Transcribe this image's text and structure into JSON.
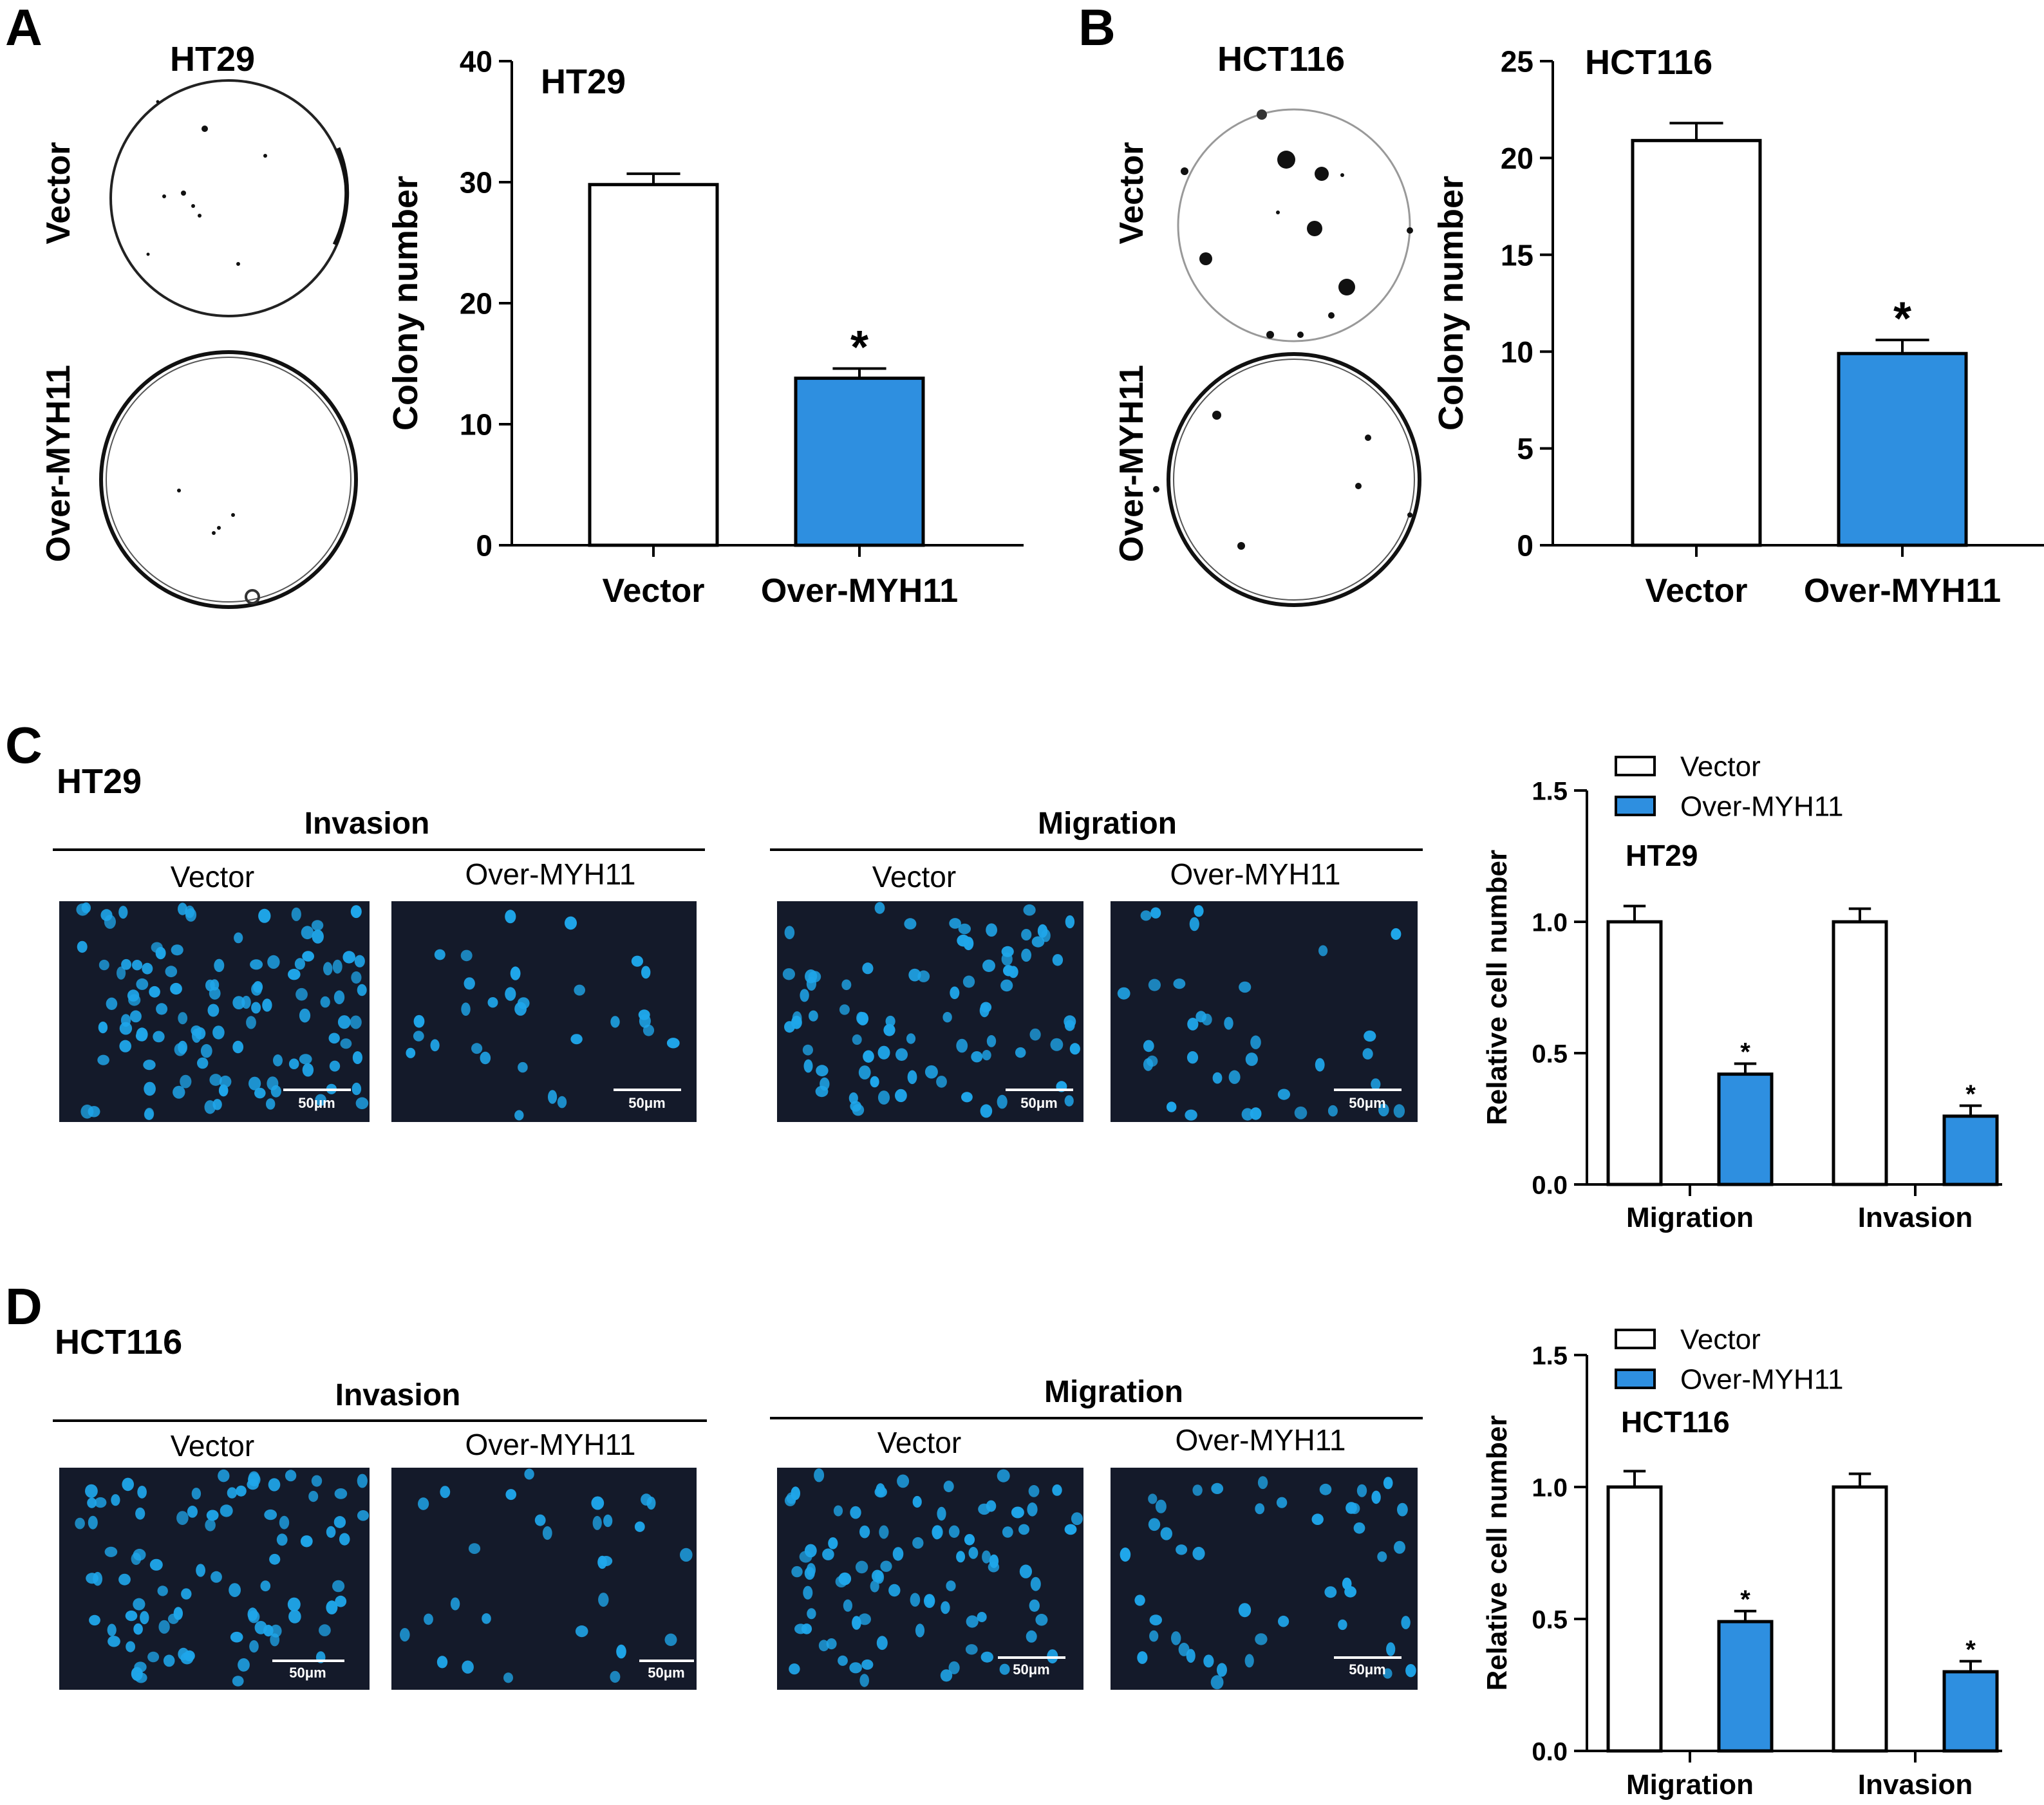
{
  "panels": {
    "A": {
      "letter": "A",
      "dish_title": "HT29",
      "row_labels": [
        "Vector",
        "Over-MYH11"
      ]
    },
    "B": {
      "letter": "B",
      "dish_title": "HCT116",
      "row_labels": [
        "Vector",
        "Over-MYH11"
      ]
    },
    "C": {
      "letter": "C",
      "cell_line": "HT29",
      "invasion_header": "Invasion",
      "migration_header": "Migration",
      "image_labels": [
        "Vector",
        "Over-MYH11",
        "Vector",
        "Over-MYH11"
      ],
      "scale_bar": "50μm"
    },
    "D": {
      "letter": "D",
      "cell_line": "HCT116",
      "invasion_header": "Invasion",
      "migration_header": "Migration",
      "image_labels": [
        "Vector",
        "Over-MYH11",
        "Vector",
        "Over-MYH11"
      ],
      "scale_bar": "50μm"
    }
  },
  "colors": {
    "vector_fill": "#ffffff",
    "over_fill": "#2e8fe0",
    "micrograph_bg": "#141a2a",
    "nucleus": "#1fa6ea",
    "axis": "#000000"
  },
  "chart_data": [
    {
      "id": "A",
      "type": "bar",
      "title": "HT29",
      "categories": [
        "Vector",
        "Over-MYH11"
      ],
      "values": [
        29.8,
        13.8
      ],
      "errors": [
        0.9,
        0.8
      ],
      "significance": [
        "",
        "*"
      ],
      "ylabel": "Colony number",
      "ylim": [
        0,
        40
      ],
      "yticks": [
        0,
        10,
        20,
        30,
        40
      ],
      "ytick_labels": [
        "0",
        "10",
        "20",
        "30",
        "40"
      ]
    },
    {
      "id": "B",
      "type": "bar",
      "title": "HCT116",
      "categories": [
        "Vector",
        "Over-MYH11"
      ],
      "values": [
        20.9,
        9.9
      ],
      "errors": [
        0.9,
        0.7
      ],
      "significance": [
        "",
        "*"
      ],
      "ylabel": "Colony number",
      "ylim": [
        0,
        25
      ],
      "yticks": [
        0,
        5,
        10,
        15,
        20,
        25
      ],
      "ytick_labels": [
        "0",
        "5",
        "10",
        "15",
        "20",
        "25"
      ]
    },
    {
      "id": "C",
      "type": "bar",
      "title": "HT29",
      "categories": [
        "Migration",
        "Invasion"
      ],
      "series": [
        {
          "name": "Vector",
          "values": [
            1.0,
            1.0
          ],
          "errors": [
            0.06,
            0.05
          ],
          "significance": [
            "",
            ""
          ]
        },
        {
          "name": "Over-MYH11",
          "values": [
            0.42,
            0.26
          ],
          "errors": [
            0.04,
            0.04
          ],
          "significance": [
            "*",
            "*"
          ]
        }
      ],
      "ylabel": "Relative cell number",
      "ylim": [
        0,
        1.5
      ],
      "yticks": [
        0,
        0.5,
        1.0,
        1.5
      ],
      "ytick_labels": [
        "0.0",
        "0.5",
        "1.0",
        "1.5"
      ]
    },
    {
      "id": "D",
      "type": "bar",
      "title": "HCT116",
      "categories": [
        "Migration",
        "Invasion"
      ],
      "series": [
        {
          "name": "Vector",
          "values": [
            1.0,
            1.0
          ],
          "errors": [
            0.06,
            0.05
          ],
          "significance": [
            "",
            ""
          ]
        },
        {
          "name": "Over-MYH11",
          "values": [
            0.49,
            0.3
          ],
          "errors": [
            0.04,
            0.04
          ],
          "significance": [
            "*",
            "*"
          ]
        }
      ],
      "ylabel": "Relative cell number",
      "ylim": [
        0,
        1.5
      ],
      "yticks": [
        0,
        0.5,
        1.0,
        1.5
      ],
      "ytick_labels": [
        "0.0",
        "0.5",
        "1.0",
        "1.5"
      ]
    }
  ]
}
